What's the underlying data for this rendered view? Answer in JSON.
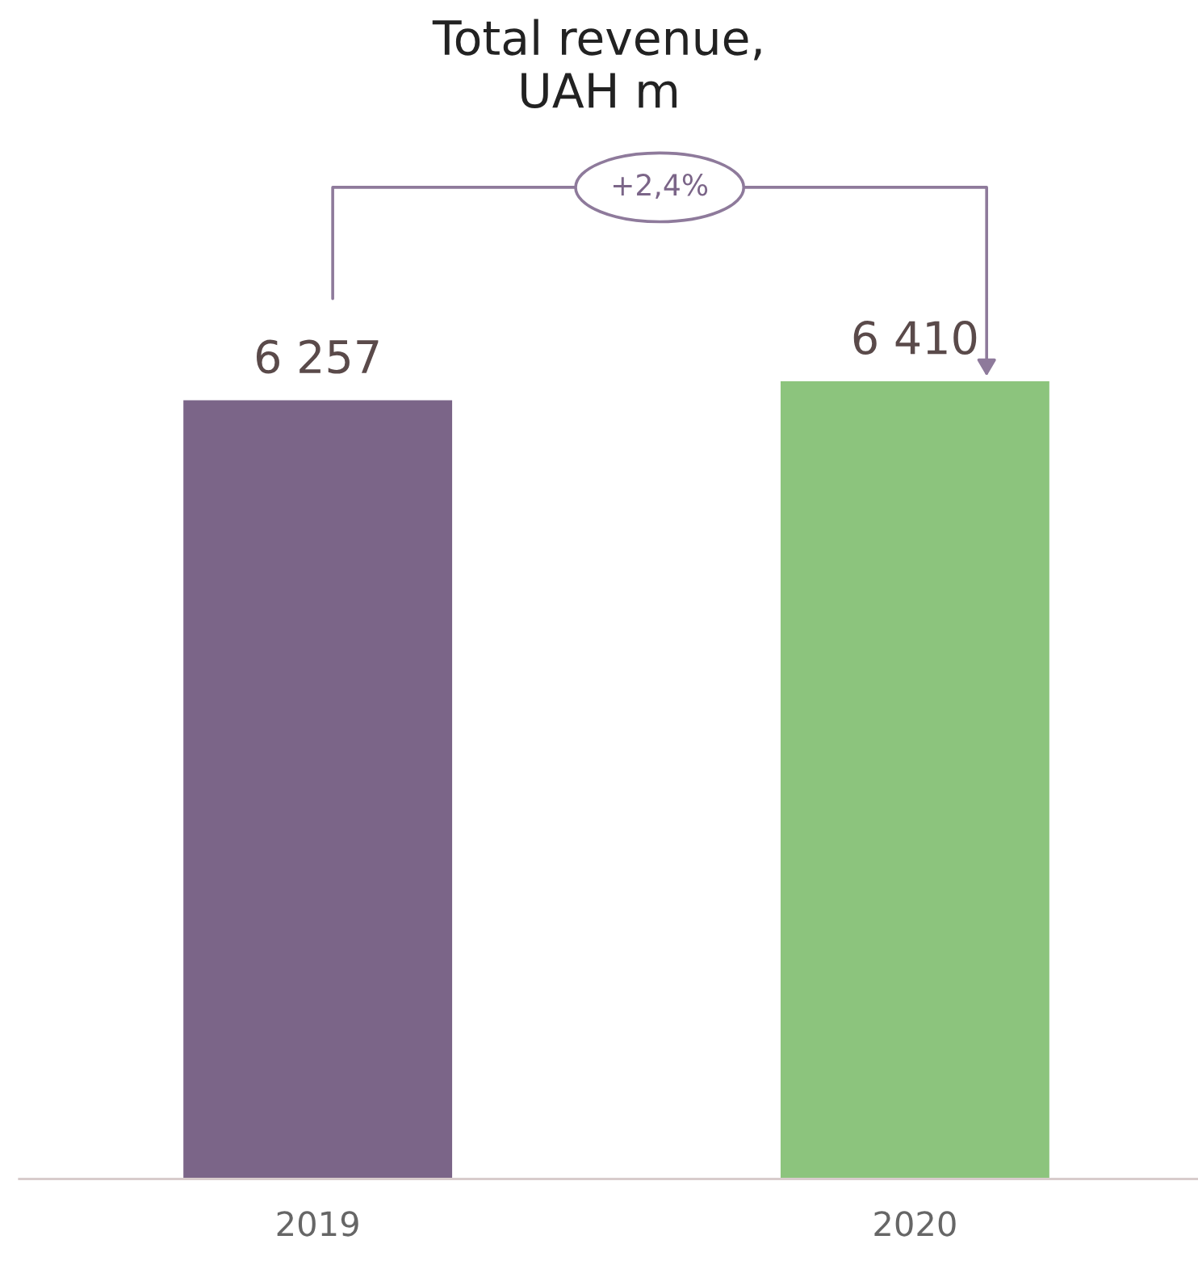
{
  "chart_data": {
    "type": "bar",
    "title": "Total revenue,\nUAH m",
    "categories": [
      "2019",
      "2020"
    ],
    "values": [
      6257,
      6410
    ],
    "colors": [
      "#7b6588",
      "#8cc47d"
    ],
    "value_labels": [
      "6 257",
      "6 410"
    ],
    "annotations": [
      "+2,4%"
    ],
    "tick_labels": "x"
  }
}
